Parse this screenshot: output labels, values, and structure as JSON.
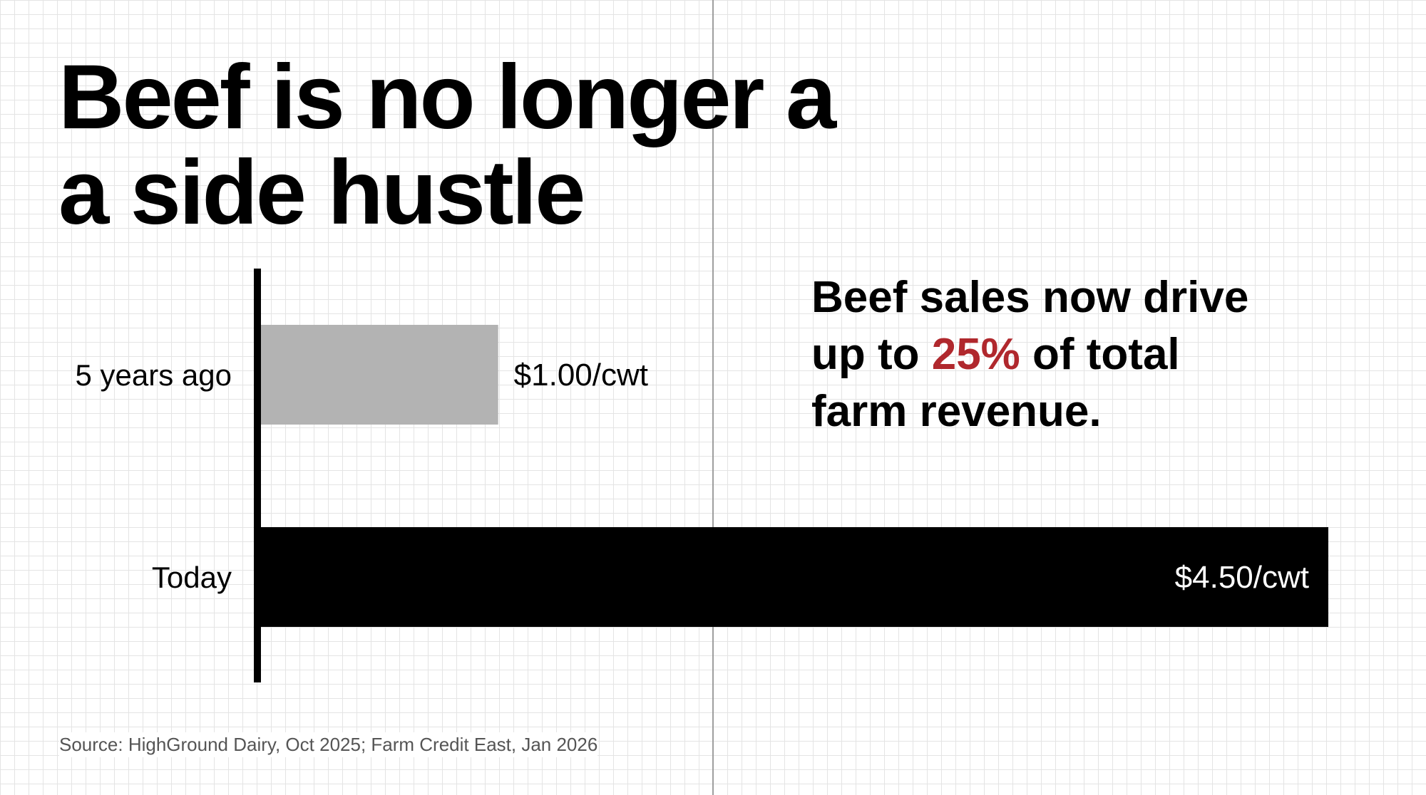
{
  "title": {
    "line1": "Beef is no longer a",
    "line2": "a side hustle"
  },
  "chart_data": {
    "type": "bar",
    "orientation": "horizontal",
    "categories": [
      "5 years ago",
      "Today"
    ],
    "values": [
      1.0,
      4.5
    ],
    "value_labels": [
      "$1.00/cwt",
      "$4.50/cwt"
    ],
    "bar_colors": [
      "#b3b3b3",
      "#000000"
    ],
    "xlim": [
      0,
      5.0
    ],
    "title": "",
    "xlabel": "",
    "ylabel": "",
    "grid": true,
    "legend": "none"
  },
  "callout": {
    "line1": "Beef sales now drive",
    "line2_prefix": "up to ",
    "line2_highlight": "25%",
    "line2_suffix": " of total",
    "line3": "farm revenue."
  },
  "source": "Source: HighGround Dairy, Oct 2025; Farm Credit East, Jan 2026",
  "colors": {
    "accent": "#b0282d",
    "grid": "#e4e4e4",
    "divider": "#9e9e9e"
  }
}
